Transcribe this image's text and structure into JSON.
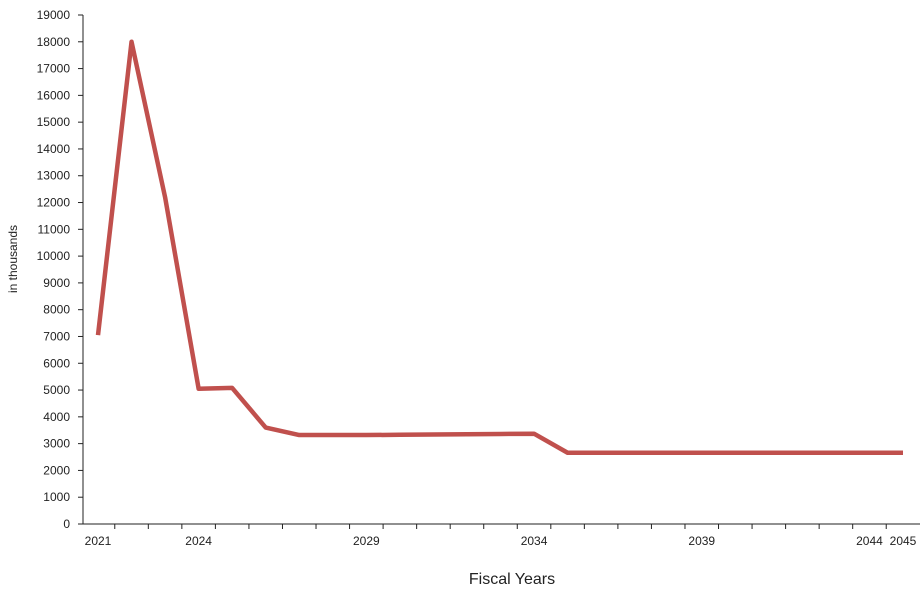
{
  "chart_data": {
    "type": "line",
    "title": "",
    "xlabel": "Fiscal Years",
    "ylabel": "in thousands",
    "x": [
      2021,
      2022,
      2023,
      2024,
      2025,
      2026,
      2027,
      2028,
      2029,
      2030,
      2031,
      2032,
      2033,
      2034,
      2035,
      2036,
      2037,
      2038,
      2039,
      2040,
      2041,
      2042,
      2043,
      2044,
      2045
    ],
    "series": [
      {
        "values": [
          7050,
          18000,
          12200,
          5050,
          5080,
          3600,
          3320,
          3320,
          3320,
          3330,
          3340,
          3350,
          3360,
          3370,
          2660,
          2660,
          2660,
          2660,
          2660,
          2660,
          2660,
          2660,
          2660,
          2660,
          2660
        ],
        "color": "#c0504d"
      }
    ],
    "xlim": [
      2021,
      2045
    ],
    "ylim": [
      0,
      19000
    ],
    "x_tick_labels": [
      "2021",
      "2024",
      "2029",
      "2034",
      "2039",
      "2044",
      "2045"
    ],
    "y_tick_labels": [
      "0",
      "1000",
      "2000",
      "3000",
      "4000",
      "5000",
      "6000",
      "7000",
      "8000",
      "9000",
      "10000",
      "11000",
      "12000",
      "13000",
      "14000",
      "15000",
      "16000",
      "17000",
      "18000",
      "19000"
    ],
    "grid": false,
    "legend": "none"
  }
}
